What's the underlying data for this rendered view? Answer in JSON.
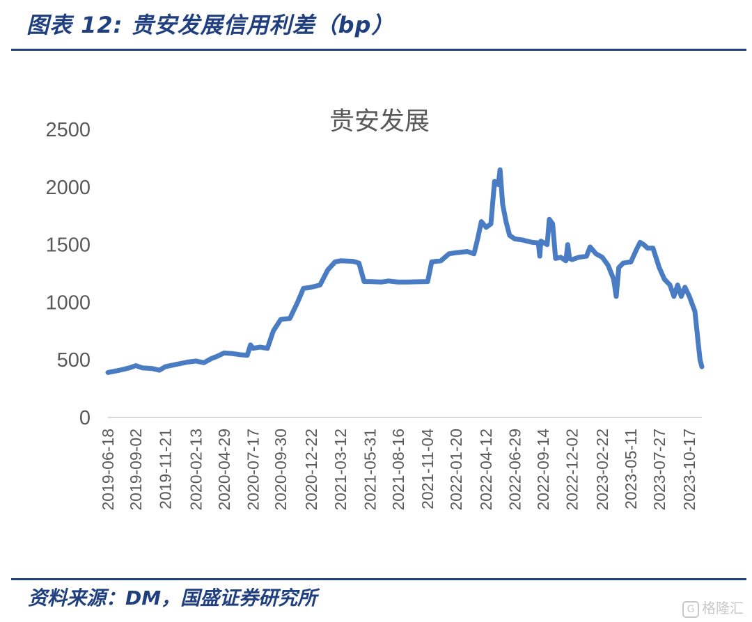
{
  "figure": {
    "title": "图表 12:  贵安发展信用利差（bp）",
    "source": "资料来源：DM，国盛证券研究所",
    "watermark": "格隆汇",
    "line_color": "#4a7cc4",
    "header_color": "#1f3f7f"
  },
  "chart_data": {
    "type": "line",
    "title": "贵安发展",
    "xlabel": "",
    "ylabel": "",
    "ylim": [
      0,
      2500
    ],
    "yticks": [
      0,
      500,
      1000,
      1500,
      2000,
      2500
    ],
    "grid": false,
    "legend": "none",
    "x_tick_labels": [
      "2019-06-18",
      "2019-09-02",
      "2019-11-21",
      "2020-02-13",
      "2020-04-29",
      "2020-07-17",
      "2020-09-30",
      "2020-12-22",
      "2021-03-12",
      "2021-05-31",
      "2021-08-16",
      "2021-11-04",
      "2022-01-20",
      "2022-04-12",
      "2022-06-29",
      "2022-09-14",
      "2022-12-02",
      "2023-02-22",
      "2023-05-11",
      "2023-07-27",
      "2023-10-17"
    ],
    "series": [
      {
        "color": "#4a7cc4",
        "points": [
          [
            "2019-06-18",
            390
          ],
          [
            "2019-07-20",
            410
          ],
          [
            "2019-08-15",
            430
          ],
          [
            "2019-09-02",
            450
          ],
          [
            "2019-09-20",
            430
          ],
          [
            "2019-10-15",
            425
          ],
          [
            "2019-11-05",
            410
          ],
          [
            "2019-11-21",
            440
          ],
          [
            "2019-12-20",
            460
          ],
          [
            "2020-01-20",
            480
          ],
          [
            "2020-02-13",
            490
          ],
          [
            "2020-03-05",
            475
          ],
          [
            "2020-03-25",
            510
          ],
          [
            "2020-04-10",
            530
          ],
          [
            "2020-04-29",
            560
          ],
          [
            "2020-05-20",
            555
          ],
          [
            "2020-06-10",
            545
          ],
          [
            "2020-07-01",
            540
          ],
          [
            "2020-07-10",
            630
          ],
          [
            "2020-07-17",
            600
          ],
          [
            "2020-08-05",
            610
          ],
          [
            "2020-08-25",
            600
          ],
          [
            "2020-09-10",
            750
          ],
          [
            "2020-09-30",
            850
          ],
          [
            "2020-10-25",
            860
          ],
          [
            "2020-11-15",
            1000
          ],
          [
            "2020-12-01",
            1120
          ],
          [
            "2020-12-22",
            1130
          ],
          [
            "2021-01-15",
            1150
          ],
          [
            "2021-02-05",
            1280
          ],
          [
            "2021-02-25",
            1350
          ],
          [
            "2021-03-12",
            1360
          ],
          [
            "2021-04-15",
            1355
          ],
          [
            "2021-05-01",
            1340
          ],
          [
            "2021-05-15",
            1180
          ],
          [
            "2021-05-31",
            1180
          ],
          [
            "2021-06-30",
            1175
          ],
          [
            "2021-07-20",
            1185
          ],
          [
            "2021-08-16",
            1175
          ],
          [
            "2021-09-10",
            1175
          ],
          [
            "2021-10-10",
            1178
          ],
          [
            "2021-11-04",
            1180
          ],
          [
            "2021-11-15",
            1350
          ],
          [
            "2021-12-10",
            1360
          ],
          [
            "2022-01-01",
            1420
          ],
          [
            "2022-01-20",
            1430
          ],
          [
            "2022-02-20",
            1440
          ],
          [
            "2022-03-10",
            1420
          ],
          [
            "2022-03-20",
            1550
          ],
          [
            "2022-03-30",
            1700
          ],
          [
            "2022-04-12",
            1650
          ],
          [
            "2022-04-25",
            1680
          ],
          [
            "2022-05-05",
            2050
          ],
          [
            "2022-05-15",
            2020
          ],
          [
            "2022-05-20",
            2150
          ],
          [
            "2022-05-27",
            1850
          ],
          [
            "2022-06-05",
            1700
          ],
          [
            "2022-06-15",
            1580
          ],
          [
            "2022-06-29",
            1550
          ],
          [
            "2022-07-20",
            1540
          ],
          [
            "2022-08-15",
            1520
          ],
          [
            "2022-09-01",
            1515
          ],
          [
            "2022-09-05",
            1400
          ],
          [
            "2022-09-08",
            1530
          ],
          [
            "2022-09-14",
            1520
          ],
          [
            "2022-09-25",
            1500
          ],
          [
            "2022-10-01",
            1720
          ],
          [
            "2022-10-10",
            1680
          ],
          [
            "2022-10-18",
            1380
          ],
          [
            "2022-11-01",
            1390
          ],
          [
            "2022-11-15",
            1360
          ],
          [
            "2022-11-20",
            1500
          ],
          [
            "2022-11-25",
            1380
          ],
          [
            "2022-12-02",
            1370
          ],
          [
            "2022-12-20",
            1390
          ],
          [
            "2023-01-10",
            1400
          ],
          [
            "2023-01-20",
            1480
          ],
          [
            "2023-02-05",
            1420
          ],
          [
            "2023-02-22",
            1390
          ],
          [
            "2023-03-10",
            1320
          ],
          [
            "2023-03-25",
            1200
          ],
          [
            "2023-04-01",
            1050
          ],
          [
            "2023-04-08",
            1300
          ],
          [
            "2023-04-20",
            1340
          ],
          [
            "2023-05-11",
            1350
          ],
          [
            "2023-05-25",
            1450
          ],
          [
            "2023-06-05",
            1520
          ],
          [
            "2023-06-15",
            1500
          ],
          [
            "2023-06-25",
            1470
          ],
          [
            "2023-07-10",
            1470
          ],
          [
            "2023-07-27",
            1300
          ],
          [
            "2023-08-10",
            1200
          ],
          [
            "2023-08-25",
            1150
          ],
          [
            "2023-09-05",
            1050
          ],
          [
            "2023-09-15",
            1150
          ],
          [
            "2023-09-25",
            1050
          ],
          [
            "2023-10-05",
            1130
          ],
          [
            "2023-10-17",
            1050
          ],
          [
            "2023-11-01",
            920
          ],
          [
            "2023-11-10",
            650
          ],
          [
            "2023-11-15",
            500
          ],
          [
            "2023-11-20",
            440
          ]
        ]
      }
    ]
  }
}
